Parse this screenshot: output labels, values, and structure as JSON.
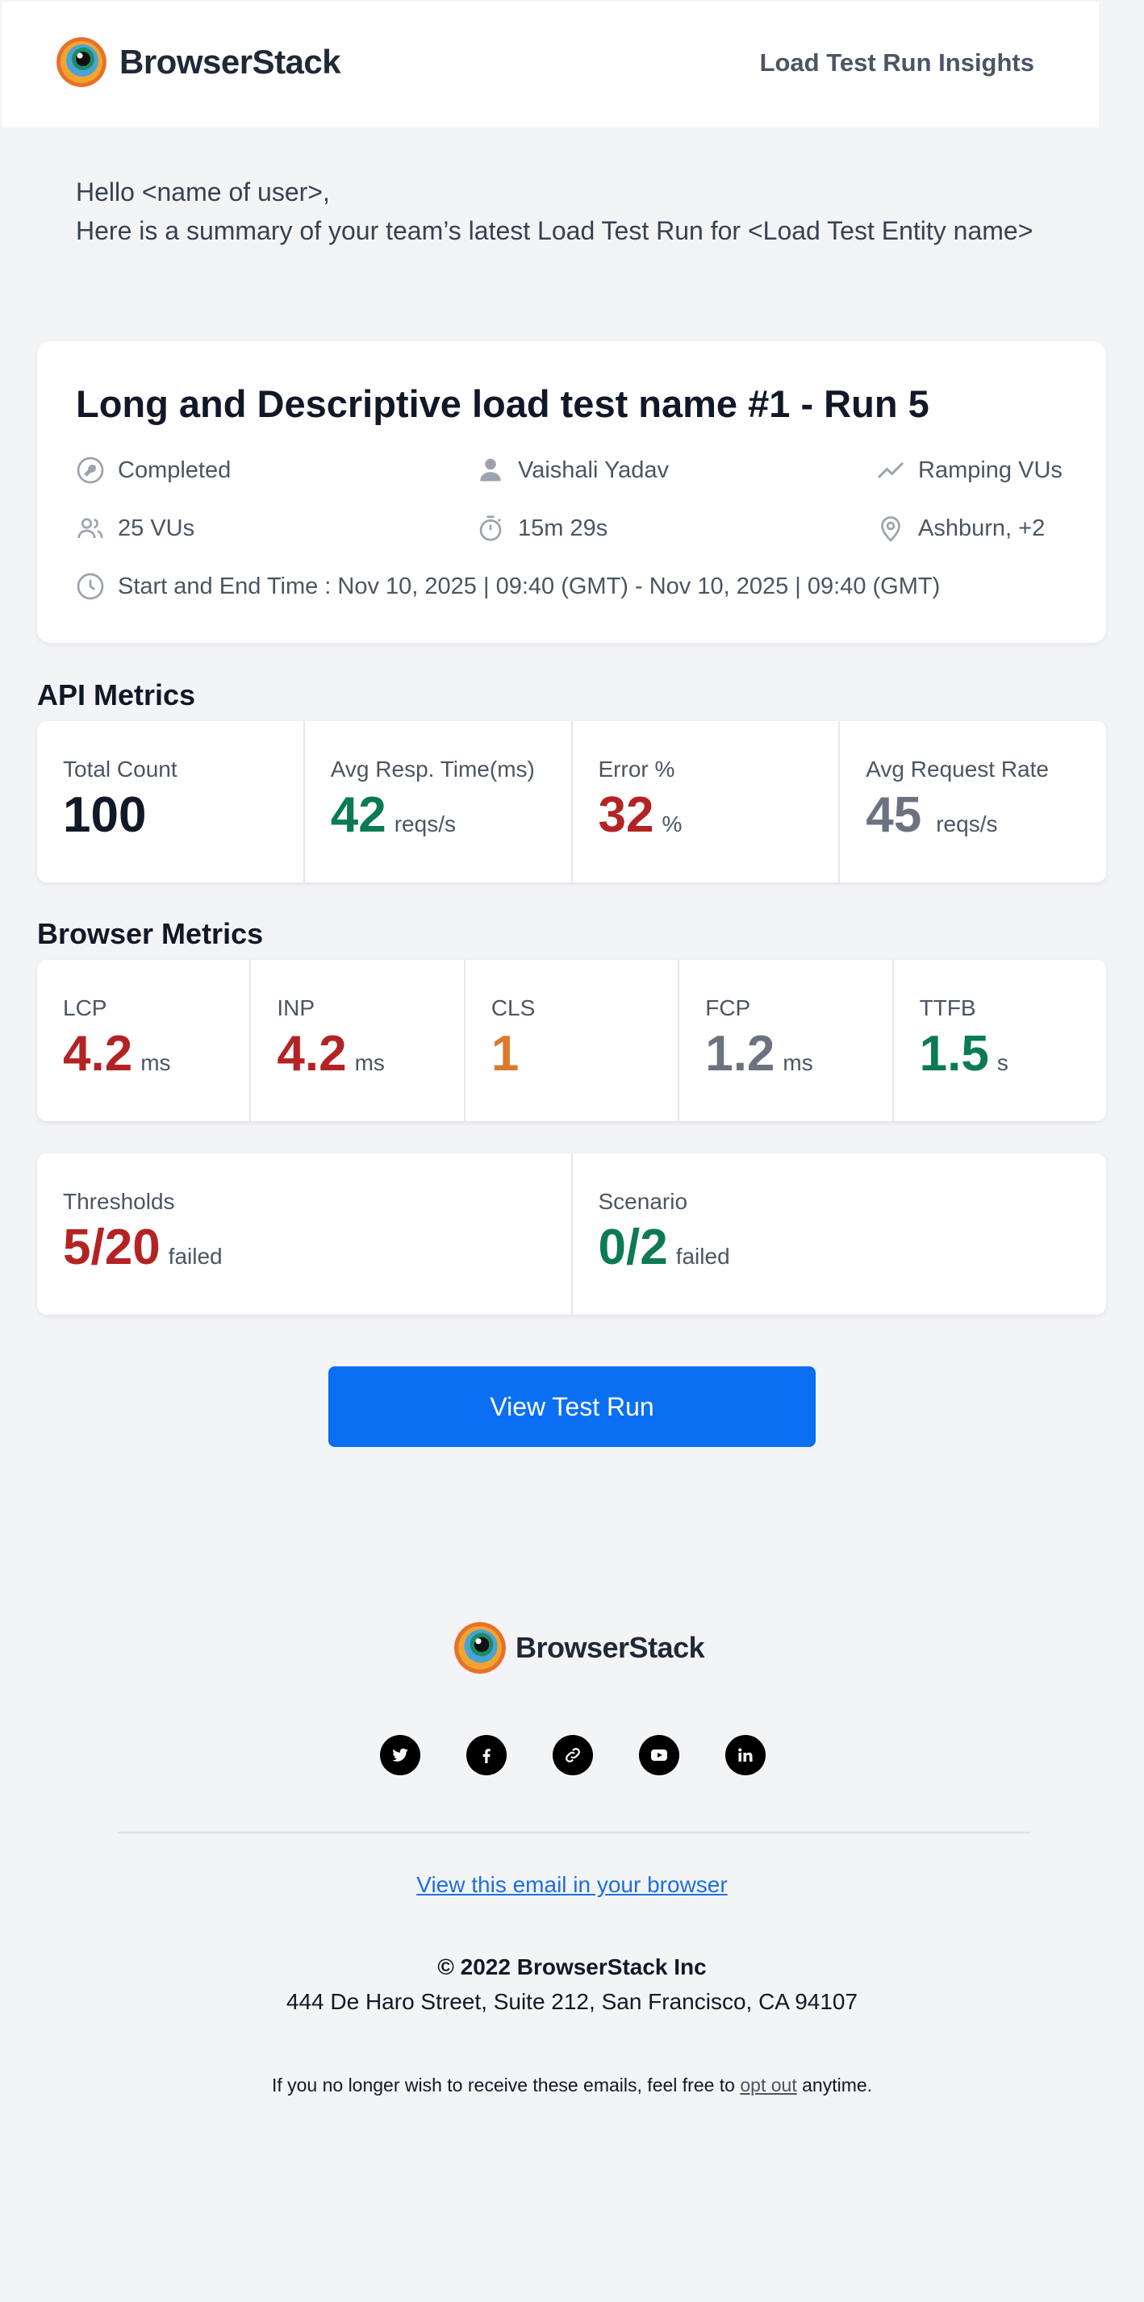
{
  "header": {
    "brand": "BrowserStack",
    "title": "Load Test Run Insights"
  },
  "greeting": {
    "line1": "Hello <name of user>,",
    "line2": "Here is a summary of your team’s latest Load Test Run for <Load Test Entity name>"
  },
  "run": {
    "title": "Long and Descriptive load test name #1 - Run 5",
    "status": "Completed",
    "user": "Vaishali Yadav",
    "load_profile": "Ramping VUs",
    "vus": "25 VUs",
    "duration": "15m 29s",
    "location": "Ashburn, +2",
    "time_range": "Start and End Time : Nov 10, 2025 | 09:40 (GMT) - Nov 10, 2025 | 09:40 (GMT)"
  },
  "api_metrics": {
    "title": "API Metrics",
    "items": [
      {
        "label": "Total Count",
        "value": "100",
        "unit": "",
        "color": "#111827"
      },
      {
        "label": "Avg Resp. Time(ms)",
        "value": "42",
        "unit": "reqs/s",
        "color": "#0b7a55"
      },
      {
        "label": "Error %",
        "value": "32",
        "unit": "%",
        "color": "#b42323"
      },
      {
        "label": "Avg Request Rate",
        "value": "45",
        "unit": "reqs/s",
        "color": "#6b7280"
      }
    ]
  },
  "browser_metrics": {
    "title": "Browser Metrics",
    "items": [
      {
        "label": "LCP",
        "value": "4.2",
        "unit": "ms",
        "color": "#b42323"
      },
      {
        "label": "INP",
        "value": "4.2",
        "unit": "ms",
        "color": "#b42323"
      },
      {
        "label": "CLS",
        "value": "1",
        "unit": "",
        "color": "#db7a2e"
      },
      {
        "label": "FCP",
        "value": "1.2",
        "unit": "ms",
        "color": "#6b7280"
      },
      {
        "label": "TTFB",
        "value": "1.5",
        "unit": "s",
        "color": "#0b7a55"
      }
    ]
  },
  "checks": {
    "items": [
      {
        "label": "Thresholds",
        "value": "5/20",
        "unit": "failed",
        "color": "#b42323"
      },
      {
        "label": "Scenario",
        "value": "0/2",
        "unit": "failed",
        "color": "#0b7a55"
      }
    ]
  },
  "cta": {
    "label": "View Test Run"
  },
  "footer": {
    "brand": "BrowserStack",
    "social": [
      "twitter-icon",
      "facebook-icon",
      "link-icon",
      "youtube-icon",
      "linkedin-icon"
    ],
    "view_in_browser": "View this email in your browser",
    "copyright": "© 2022 BrowserStack Inc",
    "address": "444 De Haro Street, Suite 212, San Francisco, CA 94107",
    "optout_prefix": "If you no longer wish to receive these emails, feel free to",
    "optout_link": "opt out",
    "optout_suffix": "anytime."
  }
}
